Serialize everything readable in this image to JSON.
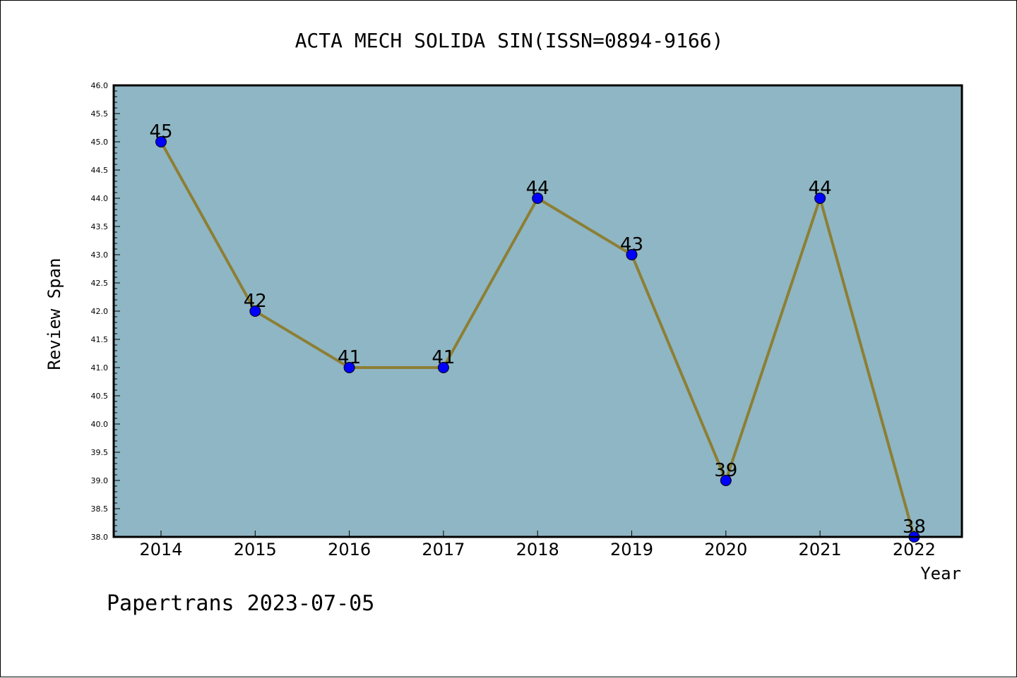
{
  "chart_data": {
    "type": "line",
    "title": "ACTA MECH SOLIDA SIN(ISSN=0894-9166)",
    "xlabel": "Year",
    "ylabel": "Review Span",
    "x": [
      "2014",
      "2015",
      "2016",
      "2017",
      "2018",
      "2019",
      "2020",
      "2021",
      "2022"
    ],
    "series": [
      {
        "values": [
          45,
          42,
          41,
          41,
          44,
          43,
          39,
          44,
          38
        ]
      }
    ],
    "ylim": [
      38.0,
      46.0
    ],
    "yticks": [
      "38.0",
      "38.5",
      "39.0",
      "39.5",
      "40.0",
      "40.5",
      "41.0",
      "41.5",
      "42.0",
      "42.5",
      "43.0",
      "43.5",
      "44.0",
      "44.5",
      "45.0",
      "45.5",
      "46.0"
    ],
    "grid": false,
    "colors": {
      "plot_background": "#8fb6c4",
      "line": "#8c7f35",
      "marker": "#0000ff"
    }
  },
  "footer": "Papertrans 2023-07-05"
}
